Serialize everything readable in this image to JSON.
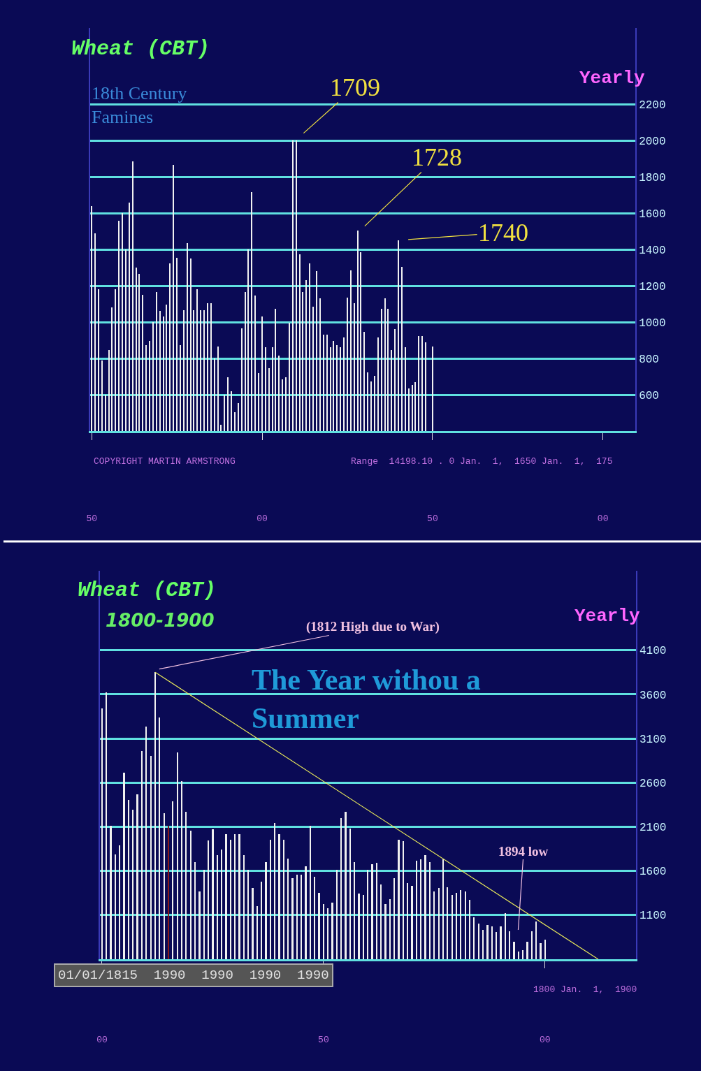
{
  "chart_data": [
    {
      "type": "bar",
      "title": "Wheat (CBT)",
      "subtitle": "18th Century\nFamines",
      "xlabel": "Yearly",
      "categories": [
        "50",
        null,
        null,
        null,
        null,
        null,
        null,
        null,
        null,
        null,
        null,
        null,
        null,
        null,
        null,
        null,
        null,
        null,
        null,
        null,
        null,
        null,
        null,
        null,
        null,
        null,
        null,
        null,
        null,
        null,
        null,
        null,
        null,
        null,
        null,
        null,
        null,
        null,
        null,
        null,
        null,
        null,
        null,
        null,
        null,
        null,
        null,
        null,
        null,
        null,
        "00",
        null,
        null,
        null,
        null,
        null,
        null,
        null,
        null,
        null,
        null,
        null,
        null,
        null,
        null,
        null,
        null,
        null,
        null,
        null,
        null,
        null,
        null,
        null,
        null,
        null,
        null,
        null,
        null,
        null,
        null,
        null,
        null,
        null,
        null,
        null,
        null,
        null,
        null,
        null,
        null,
        null,
        null,
        null,
        null,
        null,
        null,
        null,
        null,
        null,
        "50",
        null,
        null,
        null,
        null,
        null,
        null,
        null,
        null,
        null,
        null,
        null,
        null,
        null,
        null,
        null,
        null,
        null,
        null,
        null,
        null,
        null,
        null,
        null,
        null,
        null,
        null,
        null,
        null,
        null,
        null,
        null,
        null,
        null,
        null,
        null,
        null,
        null,
        null,
        null,
        null,
        null,
        null,
        null,
        null,
        null,
        null,
        null,
        null,
        null,
        "00",
        null,
        null,
        null,
        null,
        null,
        null,
        null,
        null,
        null
      ],
      "values": [
        1640,
        1490,
        1180,
        790,
        600,
        845,
        1080,
        1180,
        1560,
        1600,
        1400,
        1660,
        1885,
        1300,
        1265,
        1150,
        875,
        895,
        1000,
        1165,
        1060,
        1030,
        1095,
        1325,
        1865,
        1355,
        875,
        1065,
        1435,
        1350,
        1065,
        1180,
        1065,
        1065,
        1105,
        1105,
        800,
        865,
        435,
        600,
        695,
        620,
        505,
        555,
        965,
        1165,
        1400,
        1715,
        1145,
        720,
        1030,
        860,
        745,
        860,
        1075,
        815,
        685,
        695,
        995,
        2000,
        2000,
        1375,
        1165,
        1230,
        1325,
        1085,
        1280,
        1130,
        930,
        930,
        860,
        895,
        875,
        860,
        915,
        1135,
        1285,
        1105,
        1505,
        1385,
        945,
        725,
        675,
        705,
        915,
        1075,
        1130,
        1075,
        845,
        960,
        1450,
        1305,
        860,
        635,
        655,
        670,
        925,
        925,
        890,
        null,
        865,
        null,
        null,
        null,
        null,
        null,
        null,
        null,
        null,
        null,
        null,
        null,
        null,
        null,
        null,
        null,
        null,
        null,
        null,
        null,
        null,
        null,
        null,
        null,
        null,
        null,
        null,
        null,
        null,
        null,
        null,
        null,
        null,
        null,
        null,
        null,
        null,
        null,
        null,
        null,
        null,
        null,
        null,
        null,
        null,
        null,
        null,
        null,
        null,
        null,
        null,
        null,
        null,
        null,
        null,
        null,
        null,
        null,
        null,
        null
      ],
      "color": "#f0f0f0",
      "ylim": [
        400,
        2620
      ],
      "yticks": [
        600,
        800,
        1000,
        1200,
        1400,
        1600,
        1800,
        2000,
        2200
      ],
      "grid": "y",
      "annotations": [
        "COPYRIGHT MARTIN ARMSTRONG",
        "Range  14198.10 . 0 Jan.  1,  1650 Jan.  1,  175",
        "1709",
        "1728",
        "1740"
      ]
    },
    {
      "type": "bar",
      "title": "Wheat (CBT)",
      "subtitle": "1800-1900",
      "xlabel": "Yearly",
      "categories": [
        "00",
        null,
        null,
        null,
        null,
        null,
        null,
        null,
        null,
        null,
        null,
        null,
        null,
        null,
        null,
        null,
        null,
        null,
        null,
        null,
        null,
        null,
        null,
        null,
        null,
        null,
        null,
        null,
        null,
        null,
        null,
        null,
        null,
        null,
        null,
        null,
        null,
        null,
        null,
        null,
        null,
        null,
        null,
        null,
        null,
        null,
        null,
        null,
        null,
        null,
        "50",
        null,
        null,
        null,
        null,
        null,
        null,
        null,
        null,
        null,
        null,
        null,
        null,
        null,
        null,
        null,
        null,
        null,
        null,
        null,
        null,
        null,
        null,
        null,
        null,
        null,
        null,
        null,
        null,
        null,
        null,
        null,
        null,
        null,
        null,
        null,
        null,
        null,
        null,
        null,
        null,
        null,
        null,
        null,
        null,
        null,
        null,
        null,
        null,
        null,
        "00",
        null,
        null,
        null,
        null,
        null,
        null,
        null,
        null,
        null,
        null,
        null,
        null,
        null,
        null,
        null,
        null,
        null,
        null,
        null,
        null
      ],
      "series": [
        {
          "type": "bar",
          "values": [
            3445,
            3625,
            2115,
            1790,
            1890,
            2715,
            2405,
            2290,
            2465,
            2960,
            3235,
            2900,
            3850,
            3335,
            2255,
            2115,
            2385,
            2945,
            2620,
            2270,
            2055,
            1700,
            1365,
            1615,
            1945,
            2075,
            1780,
            1840,
            2020,
            1950,
            2015,
            2015,
            1780,
            1615,
            1405,
            1200,
            1480,
            1700,
            1950,
            2140,
            2020,
            1950,
            1740,
            1515,
            1560,
            1560,
            1655,
            2115,
            1535,
            1350,
            1225,
            1180,
            1240,
            1615,
            2195,
            2270,
            2080,
            1700,
            1340,
            1325,
            1615,
            1680,
            1695,
            1445,
            1225,
            1280,
            1515,
            1950,
            1940,
            1465,
            1430,
            1715,
            1730,
            1780,
            1700,
            1365,
            1405,
            1730,
            1415,
            1325,
            1350,
            1380,
            1370,
            1270,
            1075,
            1000,
            935,
            985,
            975,
            905,
            970,
            1120,
            920,
            800,
            690,
            705,
            800,
            920,
            1025,
            785,
            825,
            null,
            null,
            null,
            null,
            null,
            null,
            null,
            null,
            null,
            null,
            null,
            null,
            null,
            null,
            null,
            null,
            null,
            null,
            null,
            null
          ],
          "colors": [
            "#f0f0f0",
            "#f0f0f0",
            "#f0f0f0",
            "#f0f0f0",
            "#f0f0f0",
            "#f0f0f0",
            "#f0f0f0",
            "#f0f0f0",
            "#f0f0f0",
            "#f0f0f0",
            "#f0f0f0",
            "#f0f0f0",
            "#f0f0f0",
            "#f0f0f0",
            "#f0f0f0",
            "#8b1a1a",
            "#f0f0f0",
            "#f0f0f0",
            "#f0f0f0",
            "#f0f0f0",
            "#f0f0f0",
            "#f0f0f0",
            "#f0f0f0",
            "#f0f0f0",
            "#f0f0f0",
            "#f0f0f0",
            "#f0f0f0",
            "#f0f0f0",
            "#f0f0f0",
            "#f0f0f0",
            "#f0f0f0",
            "#f0f0f0",
            "#f0f0f0",
            "#f0f0f0",
            "#f0f0f0",
            "#f0f0f0",
            "#f0f0f0",
            "#f0f0f0",
            "#f0f0f0",
            "#f0f0f0",
            "#f0f0f0",
            "#f0f0f0",
            "#f0f0f0",
            "#f0f0f0",
            "#f0f0f0",
            "#f0f0f0",
            "#f0f0f0",
            "#f0f0f0",
            "#f0f0f0",
            "#f0f0f0",
            "#f0f0f0",
            "#f0f0f0",
            "#f0f0f0",
            "#f0f0f0",
            "#f0f0f0",
            "#f0f0f0",
            "#f0f0f0",
            "#f0f0f0",
            "#f0f0f0",
            "#f0f0f0",
            "#f0f0f0",
            "#f0f0f0",
            "#f0f0f0",
            "#f0f0f0",
            "#f0f0f0",
            "#f0f0f0",
            "#f0f0f0",
            "#f0f0f0",
            "#f0f0f0",
            "#f0f0f0",
            "#f0f0f0",
            "#f0f0f0",
            "#f0f0f0",
            "#f0f0f0",
            "#f0f0f0",
            "#f0f0f0",
            "#f0f0f0",
            "#f0f0f0",
            "#f0f0f0",
            "#f0f0f0",
            "#f0f0f0",
            "#f0f0f0",
            "#f0f0f0",
            "#f0f0f0",
            "#f0f0f0",
            "#f0f0f0",
            "#f0f0f0",
            "#f0f0f0",
            "#f0f0f0",
            "#f0f0f0",
            "#f0f0f0",
            "#f0f0f0",
            "#f0f0f0",
            "#f0f0f0",
            "#f0f0f0",
            "#f0f0f0",
            "#f0f0f0",
            "#f0f0f0",
            "#f0f0f0",
            "#f0f0f0",
            "#f0f0f0",
            "#f0f0f0",
            "#f0f0f0",
            "#f0f0f0",
            "#f0f0f0",
            "#f0f0f0",
            "#f0f0f0",
            "#f0f0f0",
            "#f0f0f0",
            "#f0f0f0",
            "#f0f0f0",
            "#f0f0f0",
            "#f0f0f0",
            "#f0f0f0",
            "#f0f0f0",
            "#f0f0f0",
            "#f0f0f0",
            "#f0f0f0",
            "#f0f0f0",
            "#f0f0f0",
            "#f0f0f0"
          ]
        },
        {
          "type": "line",
          "values": [
            null,
            null,
            null,
            null,
            null,
            null,
            null,
            null,
            null,
            null,
            null,
            null,
            3850,
            null,
            null,
            null,
            null,
            null,
            null,
            null,
            null,
            null,
            null,
            null,
            null,
            null,
            null,
            null,
            null,
            null,
            null,
            null,
            null,
            null,
            null,
            null,
            null,
            null,
            null,
            null,
            null,
            null,
            null,
            null,
            null,
            null,
            null,
            null,
            null,
            null,
            null,
            null,
            null,
            null,
            null,
            null,
            null,
            null,
            null,
            null,
            null,
            null,
            null,
            null,
            null,
            null,
            null,
            null,
            null,
            null,
            null,
            null,
            null,
            null,
            null,
            null,
            null,
            null,
            null,
            null,
            null,
            null,
            null,
            null,
            null,
            null,
            null,
            null,
            null,
            null,
            null,
            null,
            null,
            null,
            null,
            null,
            null,
            null,
            null,
            null,
            null,
            null,
            null,
            null,
            null,
            null,
            null,
            null,
            null,
            null,
            null,
            null,
            600,
            null,
            null,
            null,
            null,
            null,
            null,
            null,
            null
          ],
          "color": "#e8e85a"
        }
      ],
      "ylim": [
        600,
        5000
      ],
      "yticks": [
        1100,
        1600,
        2100,
        2600,
        3100,
        3600,
        4100
      ],
      "grid": "y",
      "annotations": [
        "The Year withou a\nSummer",
        "01/01/1815  1990  1990  1990  1990",
        "1800 Jan.  1,  1900",
        "(1812 High due to War)",
        "1894 low"
      ]
    }
  ]
}
